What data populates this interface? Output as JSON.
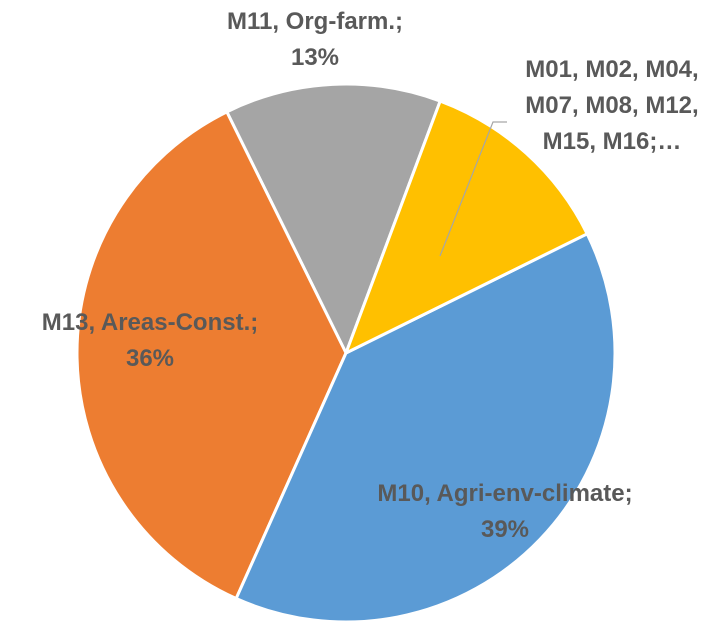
{
  "chart_data": {
    "type": "pie",
    "categories": [
      "M01, M02, M04, M07, M08, M12, M15, M16;…",
      "M10, Agri-env-climate;",
      "M13, Areas-Const.;",
      "M11, Org-farm.;"
    ],
    "values": [
      12,
      39,
      36,
      13
    ],
    "value_labels": [
      null,
      "39%",
      "36%",
      "13%"
    ],
    "colors": [
      "#ffc000",
      "#5b9bd5",
      "#ed7d31",
      "#a5a5a5"
    ]
  }
}
